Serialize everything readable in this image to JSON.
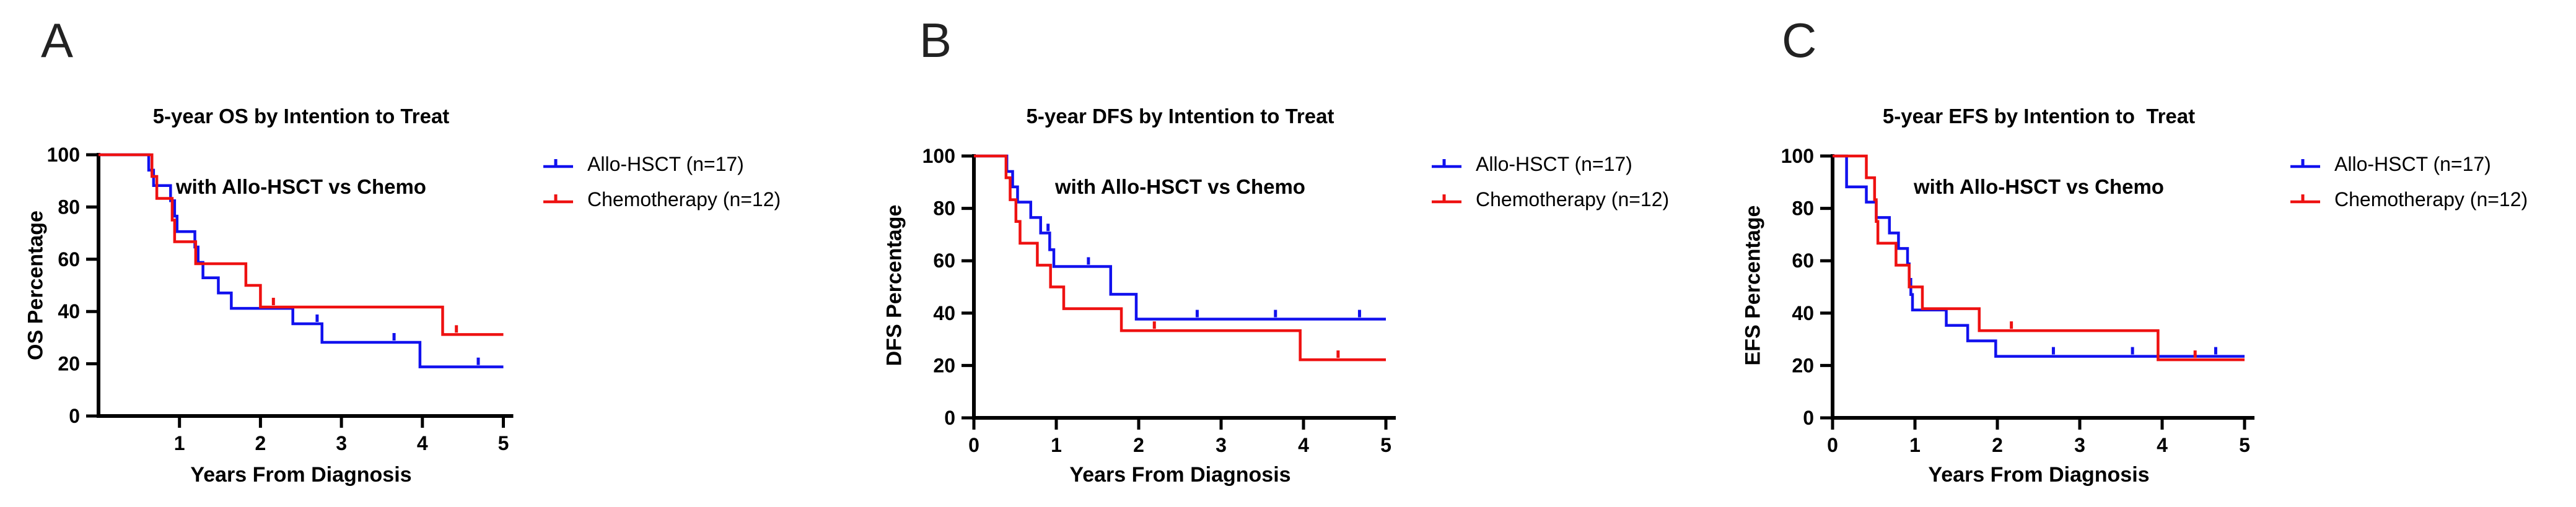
{
  "chart_data": [
    {
      "type": "line",
      "subtype": "kaplan-meier-step",
      "letter": "A",
      "title": [
        "5-year OS by Intention to Treat",
        "with Allo-HSCT vs Chemo"
      ],
      "xlabel": "Years From Diagnosis",
      "ylabel": "OS Percentage",
      "xlim": [
        0,
        5
      ],
      "ylim": [
        0,
        100
      ],
      "x_ticks": [
        1,
        2,
        3,
        4,
        5
      ],
      "y_ticks": [
        0,
        20,
        40,
        60,
        80,
        100
      ],
      "grid": "off",
      "legend_position": "right",
      "series": [
        {
          "name": "Allo-HSCT (n=17)",
          "color": "#1111EE",
          "steps": [
            [
              0,
              100
            ],
            [
              0.62,
              94.1
            ],
            [
              0.68,
              88.2
            ],
            [
              0.89,
              82.4
            ],
            [
              0.94,
              76.5
            ],
            [
              0.97,
              70.6
            ],
            [
              1.19,
              64.7
            ],
            [
              1.23,
              58.8
            ],
            [
              1.29,
              52.9
            ],
            [
              1.48,
              47.1
            ],
            [
              1.64,
              41.2
            ],
            [
              2.4,
              35.3
            ],
            [
              2.76,
              28.2
            ],
            [
              3.97,
              18.8
            ]
          ],
          "censors": [
            [
              2.7,
              35.3
            ],
            [
              3.65,
              28.2
            ],
            [
              4.69,
              18.8
            ]
          ]
        },
        {
          "name": "Chemotherapy (n=12)",
          "color": "#EE1111",
          "steps": [
            [
              0,
              100
            ],
            [
              0.66,
              91.7
            ],
            [
              0.72,
              83.3
            ],
            [
              0.91,
              75.0
            ],
            [
              0.94,
              66.7
            ],
            [
              1.2,
              58.3
            ],
            [
              1.82,
              50.0
            ],
            [
              2.0,
              41.7
            ],
            [
              4.25,
              31.2
            ]
          ],
          "censors": [
            [
              2.16,
              41.7
            ],
            [
              4.42,
              31.2
            ]
          ]
        }
      ]
    },
    {
      "type": "line",
      "subtype": "kaplan-meier-step",
      "letter": "B",
      "title": [
        "5-year DFS by Intention to Treat",
        "with Allo-HSCT vs Chemo"
      ],
      "xlabel": "Years From Diagnosis",
      "ylabel": "DFS Percentage",
      "xlim": [
        0,
        5
      ],
      "ylim": [
        0,
        100
      ],
      "x_ticks": [
        0,
        1,
        2,
        3,
        4,
        5
      ],
      "y_ticks": [
        0,
        20,
        40,
        60,
        80,
        100
      ],
      "grid": "off",
      "legend_position": "right",
      "series": [
        {
          "name": "Allo-HSCT (n=17)",
          "color": "#1111EE",
          "steps": [
            [
              0,
              100
            ],
            [
              0.4,
              94.1
            ],
            [
              0.47,
              88.2
            ],
            [
              0.53,
              82.4
            ],
            [
              0.69,
              76.5
            ],
            [
              0.81,
              70.6
            ],
            [
              0.92,
              64.2
            ],
            [
              0.97,
              57.8
            ],
            [
              1.66,
              47.2
            ],
            [
              1.97,
              37.7
            ]
          ],
          "censors": [
            [
              0.9,
              70.6
            ],
            [
              1.39,
              57.8
            ],
            [
              2.71,
              37.7
            ],
            [
              3.66,
              37.7
            ],
            [
              4.68,
              37.7
            ]
          ]
        },
        {
          "name": "Chemotherapy (n=12)",
          "color": "#EE1111",
          "steps": [
            [
              0,
              100
            ],
            [
              0.39,
              91.7
            ],
            [
              0.44,
              83.3
            ],
            [
              0.51,
              75.0
            ],
            [
              0.56,
              66.7
            ],
            [
              0.77,
              58.3
            ],
            [
              0.93,
              50.0
            ],
            [
              1.09,
              41.7
            ],
            [
              1.79,
              33.3
            ],
            [
              3.96,
              22.2
            ]
          ],
          "censors": [
            [
              2.19,
              33.3
            ],
            [
              4.42,
              22.2
            ]
          ]
        }
      ]
    },
    {
      "type": "line",
      "subtype": "kaplan-meier-step",
      "letter": "C",
      "title": [
        "5-year EFS by Intention to  Treat",
        "with Allo-HSCT vs Chemo"
      ],
      "xlabel": "Years From Diagnosis",
      "ylabel": "EFS Percentage",
      "xlim": [
        0,
        5
      ],
      "ylim": [
        0,
        100
      ],
      "x_ticks": [
        0,
        1,
        2,
        3,
        4,
        5
      ],
      "y_ticks": [
        0,
        20,
        40,
        60,
        80,
        100
      ],
      "grid": "off",
      "legend_position": "right",
      "series": [
        {
          "name": "Allo-HSCT (n=17)",
          "color": "#1111EE",
          "steps": [
            [
              0,
              100
            ],
            [
              0.17,
              88.2
            ],
            [
              0.41,
              82.4
            ],
            [
              0.53,
              76.5
            ],
            [
              0.69,
              70.6
            ],
            [
              0.8,
              64.7
            ],
            [
              0.91,
              58.8
            ],
            [
              0.93,
              52.9
            ],
            [
              0.95,
              47.1
            ],
            [
              0.97,
              41.2
            ],
            [
              1.38,
              35.3
            ],
            [
              1.64,
              29.4
            ],
            [
              1.98,
              23.5
            ]
          ],
          "censors": [
            [
              2.68,
              23.5
            ],
            [
              3.64,
              23.5
            ],
            [
              4.65,
              23.5
            ]
          ]
        },
        {
          "name": "Chemotherapy (n=12)",
          "color": "#EE1111",
          "steps": [
            [
              0,
              100
            ],
            [
              0.41,
              91.7
            ],
            [
              0.51,
              83.3
            ],
            [
              0.53,
              75.0
            ],
            [
              0.55,
              66.7
            ],
            [
              0.77,
              58.3
            ],
            [
              0.93,
              50.0
            ],
            [
              1.09,
              41.7
            ],
            [
              1.78,
              33.3
            ],
            [
              3.95,
              22.2
            ]
          ],
          "censors": [
            [
              2.17,
              33.3
            ],
            [
              4.4,
              22.2
            ]
          ]
        }
      ]
    }
  ]
}
